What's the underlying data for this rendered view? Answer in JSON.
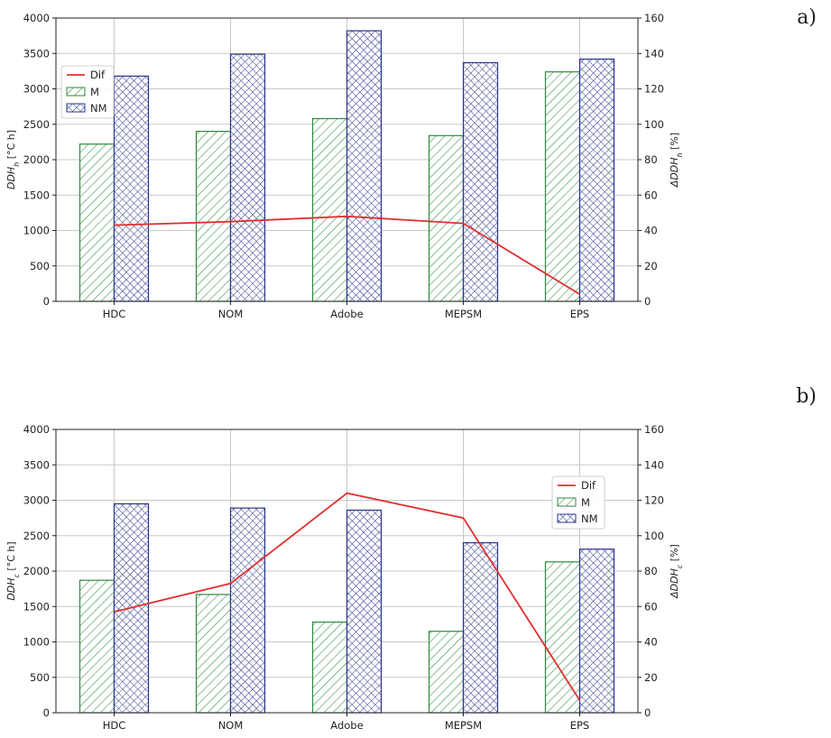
{
  "chart_data": [
    {
      "type": "bar",
      "panel_label": "a)",
      "categories": [
        "HDC",
        "NOM",
        "Adobe",
        "MEPSM",
        "EPS"
      ],
      "series": [
        {
          "name": "M",
          "values": [
            2220,
            2400,
            2580,
            2340,
            3240
          ]
        },
        {
          "name": "NM",
          "values": [
            3180,
            3490,
            3820,
            3370,
            3420
          ]
        }
      ],
      "line_series": {
        "name": "Dif",
        "axis": "right",
        "values": [
          43,
          45,
          48,
          44,
          4
        ]
      },
      "ylabel": "DDHh [°C h]",
      "ylabel_main": "DDH",
      "ylabel_sub": "h",
      "ylabel_unit": "[°C h]",
      "ylim": [
        0,
        4000
      ],
      "yticks": [
        "0",
        "500",
        "1000",
        "1500",
        "2000",
        "2500",
        "3000",
        "3500",
        "4000"
      ],
      "y2label": "ΔDDHh [%]",
      "y2label_main": "ΔDDH",
      "y2label_sub": "h",
      "y2label_unit": "[%]",
      "y2lim": [
        0,
        160
      ],
      "y2ticks": [
        "0",
        "20",
        "40",
        "60",
        "80",
        "100",
        "120",
        "140",
        "160"
      ],
      "grid": true,
      "legend": "upper-left",
      "colors": {
        "M": "#2e8b3e",
        "NM": "#27348b",
        "Dif": "#e03030"
      }
    },
    {
      "type": "bar",
      "panel_label": "b)",
      "categories": [
        "HDC",
        "NOM",
        "Adobe",
        "MEPSM",
        "EPS"
      ],
      "series": [
        {
          "name": "M",
          "values": [
            1870,
            1670,
            1280,
            1150,
            2130
          ]
        },
        {
          "name": "NM",
          "values": [
            2950,
            2890,
            2860,
            2400,
            2310
          ]
        }
      ],
      "line_series": {
        "name": "Dif",
        "axis": "right",
        "values": [
          57,
          73,
          124,
          110,
          7
        ]
      },
      "ylabel": "DDHc [°C h]",
      "ylabel_main": "DDH",
      "ylabel_sub": "c",
      "ylabel_unit": "[°C h]",
      "ylim": [
        0,
        4000
      ],
      "yticks": [
        "0",
        "500",
        "1000",
        "1500",
        "2000",
        "2500",
        "3000",
        "3500",
        "4000"
      ],
      "y2label": "ΔDDHc [%]",
      "y2label_main": "ΔDDH",
      "y2label_sub": "c",
      "y2label_unit": "[%]",
      "y2lim": [
        0,
        160
      ],
      "y2ticks": [
        "0",
        "20",
        "40",
        "60",
        "80",
        "100",
        "120",
        "140",
        "160"
      ],
      "grid": true,
      "legend": "upper-right",
      "colors": {
        "M": "#2e8b3e",
        "NM": "#27348b",
        "Dif": "#e03030"
      }
    }
  ]
}
